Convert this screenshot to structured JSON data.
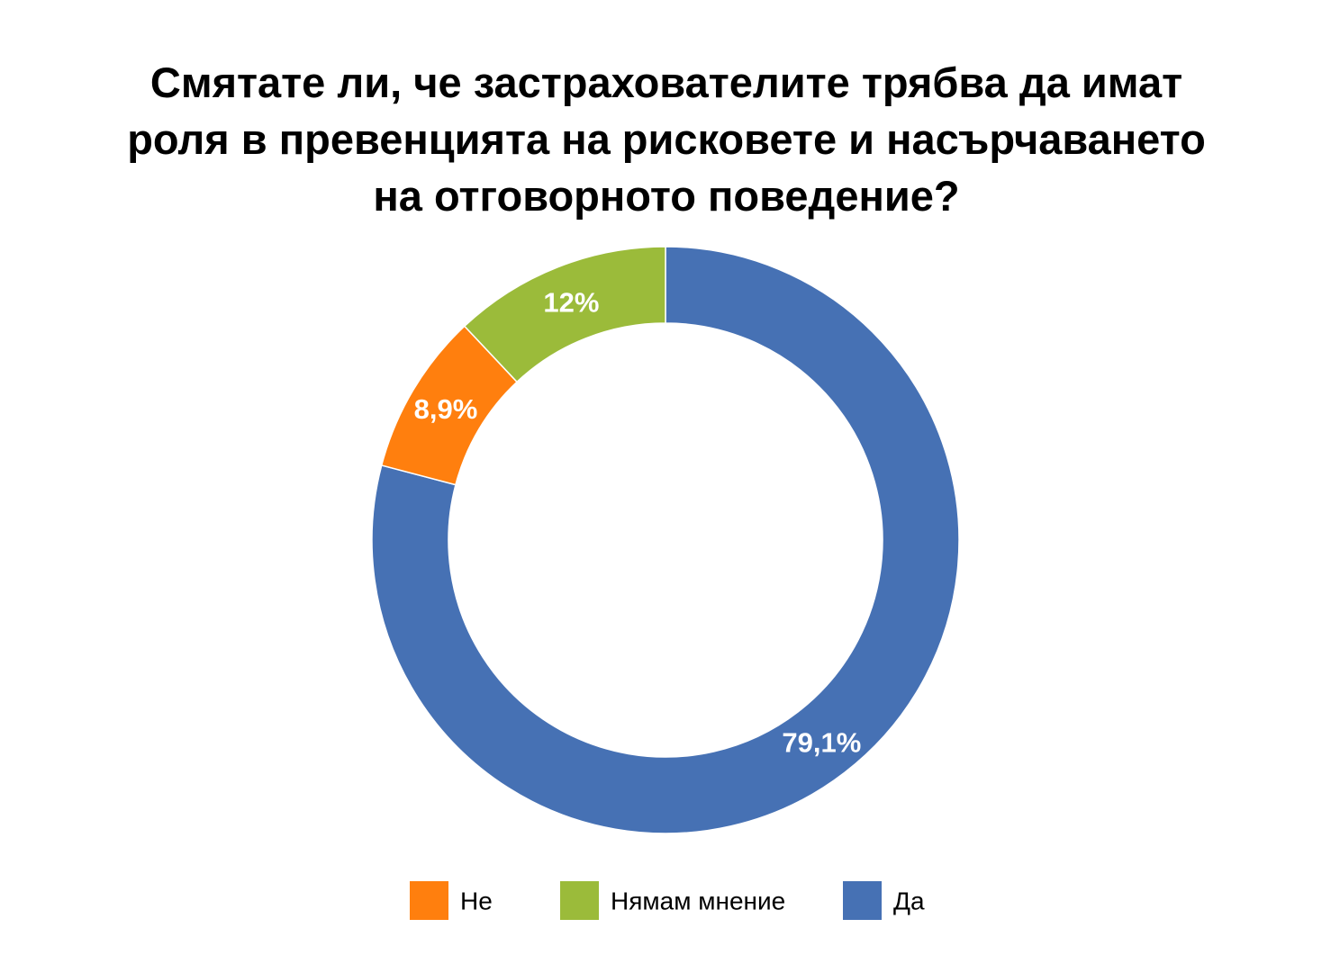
{
  "chart_data": {
    "type": "pie",
    "variant": "donut",
    "title_lines": [
      "Смятате ли, че застрахователите трябва да имат",
      "роля в превенцията на рисковете и насърчаването",
      "на отговорното поведение?"
    ],
    "categories": [
      "Не",
      "Нямам мнение",
      "Да"
    ],
    "values": [
      8.9,
      12,
      79.1
    ],
    "labels": [
      "8,9%",
      "12%",
      "79,1%"
    ],
    "colors": [
      "#FF7F0E",
      "#9BBB3A",
      "#4671B4"
    ],
    "legend_position": "bottom"
  }
}
